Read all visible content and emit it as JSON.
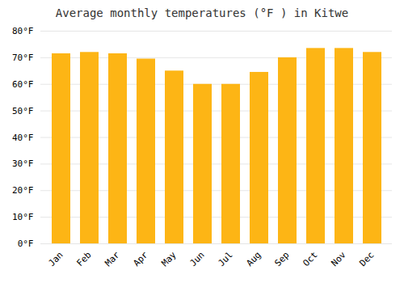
{
  "chart_data": {
    "type": "bar",
    "title": "Average monthly temperatures (°F ) in Kitwe",
    "categories": [
      "Jan",
      "Feb",
      "Mar",
      "Apr",
      "May",
      "Jun",
      "Jul",
      "Aug",
      "Sep",
      "Oct",
      "Nov",
      "Dec"
    ],
    "values": [
      71.5,
      72,
      71.5,
      69.5,
      65,
      60,
      60,
      64.5,
      70,
      73.5,
      73.5,
      72
    ],
    "color": "#FDB515",
    "ylim": [
      0,
      80
    ],
    "yticks": [
      {
        "value": 0,
        "label": "0°F"
      },
      {
        "value": 10,
        "label": "10°F"
      },
      {
        "value": 20,
        "label": "20°F"
      },
      {
        "value": 30,
        "label": "30°F"
      },
      {
        "value": 40,
        "label": "40°F"
      },
      {
        "value": 50,
        "label": "50°F"
      },
      {
        "value": 60,
        "label": "60°F"
      },
      {
        "value": 70,
        "label": "70°F"
      },
      {
        "value": 80,
        "label": "80°F"
      }
    ],
    "grid": true
  }
}
